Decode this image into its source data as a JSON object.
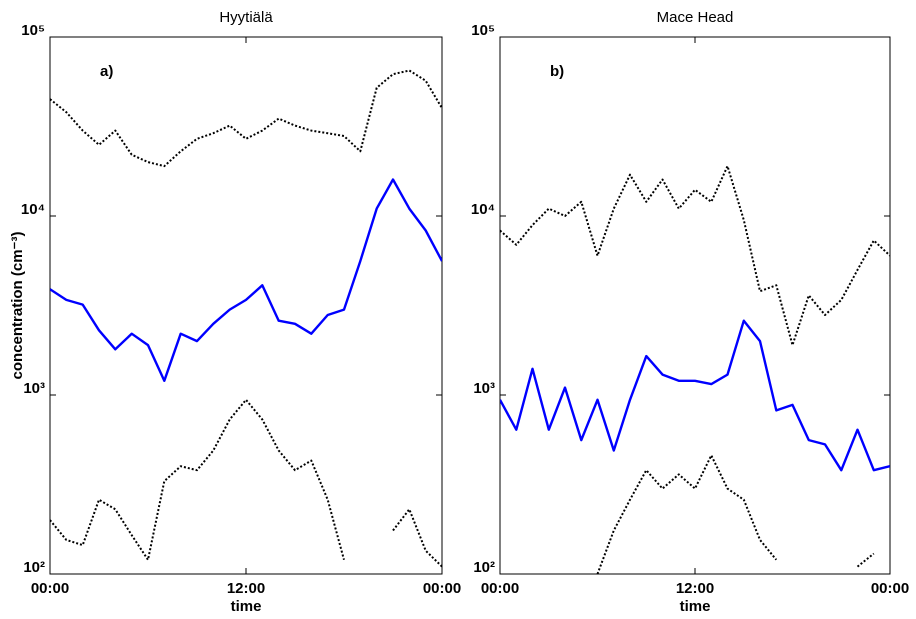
{
  "chart_data": [
    {
      "type": "line",
      "title": "Hyytiälä",
      "annotation": "a)",
      "xlabel": "time",
      "ylabel": "concentration (cm⁻³)",
      "x": [
        0,
        1,
        2,
        3,
        4,
        5,
        6,
        7,
        8,
        9,
        10,
        11,
        12,
        13,
        14,
        15,
        16,
        17,
        18,
        19,
        20,
        21,
        22,
        23,
        24
      ],
      "xlim": [
        0,
        24
      ],
      "xticks": [
        {
          "value": 0,
          "label": "00:00"
        },
        {
          "value": 12,
          "label": "12:00"
        },
        {
          "value": 24,
          "label": "00:00"
        }
      ],
      "ylim": [
        100,
        100000
      ],
      "log_y": true,
      "yticks": [
        {
          "value": 100,
          "label": "10²"
        },
        {
          "value": 1000,
          "label": "10³"
        },
        {
          "value": 10000,
          "label": "10⁴"
        },
        {
          "value": 100000,
          "label": "10⁵"
        }
      ],
      "series": [
        {
          "color": "#000000",
          "style": "dotted",
          "values": [
            45000,
            38000,
            30000,
            25000,
            30000,
            22000,
            20000,
            19000,
            23000,
            27000,
            29000,
            32000,
            27000,
            30000,
            35000,
            32000,
            30000,
            29000,
            28000,
            23000,
            52000,
            62000,
            65000,
            57000,
            40000
          ]
        },
        {
          "color": "#0000ff",
          "style": "solid",
          "values": [
            3900,
            3400,
            3200,
            2300,
            1800,
            2200,
            1900,
            1200,
            2200,
            2000,
            2500,
            3000,
            3400,
            4100,
            2600,
            2500,
            2200,
            2800,
            3000,
            5600,
            11000,
            16000,
            11000,
            8300,
            5600
          ]
        },
        {
          "color": "#000000",
          "style": "dotted",
          "values": [
            200,
            155,
            145,
            260,
            230,
            165,
            120,
            330,
            400,
            380,
            490,
            730,
            940,
            730,
            490,
            380,
            430,
            260,
            120,
            null,
            null,
            175,
            230,
            135,
            110
          ]
        }
      ]
    },
    {
      "type": "line",
      "title": "Mace Head",
      "annotation": "b)",
      "xlabel": "time",
      "x": [
        0,
        1,
        2,
        3,
        4,
        5,
        6,
        7,
        8,
        9,
        10,
        11,
        12,
        13,
        14,
        15,
        16,
        17,
        18,
        19,
        20,
        21,
        22,
        23,
        24
      ],
      "xlim": [
        0,
        24
      ],
      "xticks": [
        {
          "value": 0,
          "label": "00:00"
        },
        {
          "value": 12,
          "label": "12:00"
        },
        {
          "value": 24,
          "label": "00:00"
        }
      ],
      "ylim": [
        100,
        100000
      ],
      "log_y": true,
      "yticks": [
        {
          "value": 100,
          "label": "10²"
        },
        {
          "value": 1000,
          "label": "10³"
        },
        {
          "value": 10000,
          "label": "10⁴"
        },
        {
          "value": 100000,
          "label": "10⁵"
        }
      ],
      "series": [
        {
          "color": "#000000",
          "style": "dotted",
          "values": [
            8300,
            6900,
            8900,
            11000,
            10000,
            12000,
            6000,
            11000,
            17000,
            12000,
            16000,
            11000,
            14000,
            12000,
            19000,
            9500,
            3800,
            4100,
            1900,
            3600,
            2800,
            3400,
            5000,
            7300,
            6000
          ]
        },
        {
          "color": "#0000ff",
          "style": "solid",
          "values": [
            940,
            640,
            1400,
            640,
            1100,
            560,
            940,
            490,
            940,
            1650,
            1300,
            1200,
            1200,
            1150,
            1300,
            2600,
            2000,
            820,
            880,
            560,
            530,
            380,
            640,
            380,
            400
          ]
        },
        {
          "color": "#000000",
          "style": "dotted",
          "values": [
            null,
            null,
            null,
            null,
            null,
            null,
            100,
            175,
            260,
            380,
            300,
            360,
            300,
            460,
            300,
            260,
            155,
            120,
            null,
            null,
            null,
            null,
            110,
            130,
            null
          ]
        }
      ]
    }
  ]
}
